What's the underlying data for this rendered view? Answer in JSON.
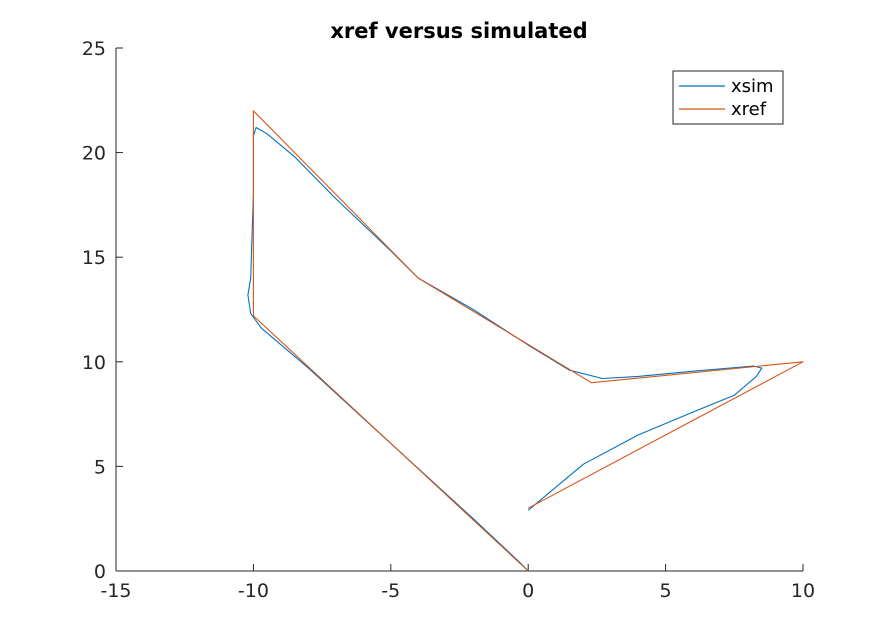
{
  "chart_data": {
    "type": "line",
    "title": "xref versus simulated",
    "xlabel": "",
    "ylabel": "",
    "xlim": [
      -15,
      10
    ],
    "ylim": [
      0,
      25
    ],
    "xticks": [
      -15,
      -10,
      -5,
      0,
      5,
      10
    ],
    "yticks": [
      0,
      5,
      10,
      15,
      20,
      25
    ],
    "xtick_labels": [
      "-15",
      "-10",
      "-5",
      "0",
      "5",
      "10"
    ],
    "ytick_labels": [
      "0",
      "5",
      "10",
      "15",
      "20",
      "25"
    ],
    "grid": false,
    "legend_placement": "top-right",
    "series": [
      {
        "name": "xsim",
        "color": "#0072BD",
        "points": [
          [
            0,
            2.9
          ],
          [
            2,
            5.1
          ],
          [
            4,
            6.5
          ],
          [
            6,
            7.6
          ],
          [
            7.5,
            8.4
          ],
          [
            8.3,
            9.3
          ],
          [
            8.5,
            9.7
          ],
          [
            8.2,
            9.8
          ],
          [
            6,
            9.55
          ],
          [
            4,
            9.3
          ],
          [
            2.7,
            9.2
          ],
          [
            1.5,
            9.6
          ],
          [
            0,
            10.8
          ],
          [
            -2,
            12.5
          ],
          [
            -4,
            14
          ],
          [
            -5,
            15.3
          ],
          [
            -7,
            17.8
          ],
          [
            -8.5,
            19.8
          ],
          [
            -9.5,
            20.9
          ],
          [
            -9.9,
            21.2
          ],
          [
            -10,
            20.8
          ],
          [
            -10,
            18
          ],
          [
            -10.05,
            16
          ],
          [
            -10.1,
            14
          ],
          [
            -10.2,
            13.2
          ],
          [
            -10.1,
            12.3
          ],
          [
            -9.7,
            11.6
          ],
          [
            -8,
            9.7
          ],
          [
            -6,
            7.3
          ],
          [
            -4,
            4.9
          ],
          [
            -2,
            2.5
          ],
          [
            -0.3,
            0.4
          ],
          [
            0,
            0
          ]
        ]
      },
      {
        "name": "xref",
        "color": "#D95319",
        "points": [
          [
            0,
            0
          ],
          [
            -10,
            12.2
          ],
          [
            -10,
            22
          ],
          [
            -4,
            14
          ],
          [
            2.3,
            9
          ],
          [
            10,
            10
          ],
          [
            0,
            3
          ]
        ]
      }
    ]
  }
}
